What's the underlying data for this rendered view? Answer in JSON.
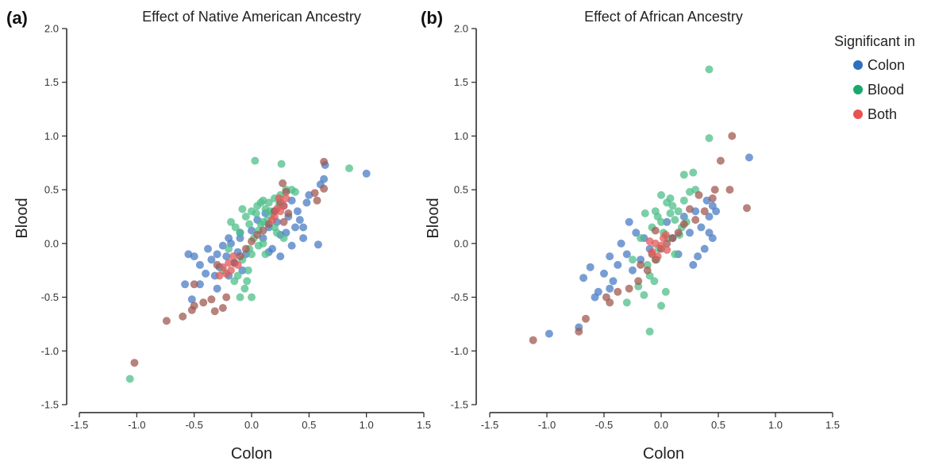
{
  "colors": {
    "colon": "#4a7cc4",
    "blood": "#4fbf8a",
    "both": "#a05a52",
    "both_light": "#e05a5a"
  },
  "legend": {
    "title": "Significant in",
    "placement": "top-right",
    "entries": [
      {
        "label": "Colon",
        "color": "#2f6fc0"
      },
      {
        "label": "Blood",
        "color": "#1aa86e"
      },
      {
        "label": "Both",
        "color": "#e8524f"
      }
    ]
  },
  "chart_data": [
    {
      "type": "scatter",
      "panel_letter": "(a)",
      "title": "Effect of Native American Ancestry",
      "xlabel": "Colon",
      "ylabel": "Blood",
      "xlim": [
        -1.5,
        1.5
      ],
      "ylim": [
        -1.5,
        2.0
      ],
      "xticks": [
        "-1.5",
        "-1.0",
        "-0.5",
        "0.0",
        "0.5",
        "1.0",
        "1.5"
      ],
      "yticks": [
        "-1.5",
        "-1.0",
        "-0.5",
        "0.0",
        "0.5",
        "1.0",
        "1.5",
        "2.0"
      ],
      "grid": false,
      "series": [
        {
          "name": "Colon",
          "color": "#4a7cc4",
          "points": [
            [
              -0.55,
              -0.1
            ],
            [
              -0.5,
              -0.12
            ],
            [
              -0.45,
              -0.2
            ],
            [
              -0.4,
              -0.28
            ],
            [
              -0.38,
              -0.05
            ],
            [
              -0.35,
              -0.15
            ],
            [
              -0.32,
              -0.3
            ],
            [
              -0.3,
              -0.1
            ],
            [
              -0.28,
              -0.22
            ],
            [
              -0.25,
              -0.02
            ],
            [
              -0.22,
              -0.12
            ],
            [
              -0.2,
              -0.3
            ],
            [
              -0.18,
              0.0
            ],
            [
              -0.15,
              -0.18
            ],
            [
              -0.12,
              -0.08
            ],
            [
              -0.1,
              0.05
            ],
            [
              -0.08,
              -0.25
            ],
            [
              -0.05,
              -0.1
            ],
            [
              0.0,
              0.12
            ],
            [
              0.05,
              0.22
            ],
            [
              0.1,
              0.05
            ],
            [
              0.12,
              0.28
            ],
            [
              0.15,
              0.15
            ],
            [
              0.18,
              -0.05
            ],
            [
              0.2,
              0.3
            ],
            [
              0.22,
              0.2
            ],
            [
              0.25,
              0.08
            ],
            [
              0.28,
              0.35
            ],
            [
              0.3,
              0.1
            ],
            [
              0.32,
              0.25
            ],
            [
              0.35,
              0.4
            ],
            [
              0.38,
              0.15
            ],
            [
              0.4,
              0.3
            ],
            [
              0.42,
              0.22
            ],
            [
              0.45,
              0.05
            ],
            [
              0.48,
              0.38
            ],
            [
              0.5,
              0.45
            ],
            [
              0.6,
              0.55
            ],
            [
              0.63,
              0.6
            ],
            [
              0.64,
              0.73
            ],
            [
              1.0,
              0.65
            ],
            [
              0.58,
              -0.01
            ],
            [
              -0.52,
              -0.52
            ],
            [
              -0.58,
              -0.38
            ],
            [
              -0.45,
              -0.38
            ],
            [
              -0.3,
              -0.42
            ],
            [
              0.25,
              -0.12
            ],
            [
              0.15,
              -0.08
            ],
            [
              -0.2,
              0.05
            ],
            [
              -0.1,
              0.1
            ],
            [
              0.35,
              -0.02
            ],
            [
              0.45,
              0.15
            ]
          ]
        },
        {
          "name": "Blood",
          "color": "#4fbf8a",
          "points": [
            [
              0.03,
              0.77
            ],
            [
              0.26,
              0.74
            ],
            [
              0.85,
              0.7
            ],
            [
              -1.06,
              -1.26
            ],
            [
              0.0,
              0.3
            ],
            [
              0.05,
              0.35
            ],
            [
              0.1,
              0.4
            ],
            [
              -0.05,
              0.25
            ],
            [
              0.08,
              0.18
            ],
            [
              -0.1,
              0.1
            ],
            [
              0.02,
              0.05
            ],
            [
              -0.02,
              -0.05
            ],
            [
              0.12,
              0.32
            ],
            [
              0.15,
              0.38
            ],
            [
              0.2,
              0.42
            ],
            [
              -0.08,
              -0.15
            ],
            [
              -0.03,
              -0.25
            ],
            [
              0.06,
              0.12
            ],
            [
              0.1,
              0.2
            ],
            [
              -0.12,
              -0.3
            ],
            [
              -0.06,
              -0.42
            ],
            [
              -0.15,
              -0.35
            ],
            [
              0.0,
              -0.5
            ],
            [
              -0.1,
              -0.5
            ],
            [
              0.18,
              0.28
            ],
            [
              0.22,
              0.1
            ],
            [
              0.25,
              0.45
            ],
            [
              0.3,
              0.5
            ],
            [
              0.35,
              0.5
            ],
            [
              0.38,
              0.48
            ],
            [
              -0.18,
              0.2
            ],
            [
              -0.14,
              0.15
            ],
            [
              0.04,
              0.28
            ],
            [
              0.14,
              0.22
            ],
            [
              0.0,
              -0.1
            ],
            [
              -0.04,
              -0.35
            ],
            [
              0.06,
              -0.02
            ],
            [
              0.1,
              0.0
            ],
            [
              -0.2,
              -0.05
            ],
            [
              -0.25,
              -0.25
            ],
            [
              0.28,
              0.05
            ],
            [
              0.16,
              0.3
            ],
            [
              -0.02,
              0.18
            ],
            [
              0.08,
              0.38
            ],
            [
              0.12,
              -0.1
            ],
            [
              -0.08,
              0.32
            ],
            [
              0.2,
              0.15
            ],
            [
              0.24,
              0.36
            ]
          ]
        },
        {
          "name": "Both",
          "color": "#a05a52",
          "points": [
            [
              -1.02,
              -1.11
            ],
            [
              -0.74,
              -0.72
            ],
            [
              -0.6,
              -0.68
            ],
            [
              -0.52,
              -0.62
            ],
            [
              -0.5,
              -0.58
            ],
            [
              -0.42,
              -0.55
            ],
            [
              -0.35,
              -0.52
            ],
            [
              -0.32,
              -0.63
            ],
            [
              -0.25,
              -0.6
            ],
            [
              -0.22,
              -0.5
            ],
            [
              -0.5,
              -0.38
            ],
            [
              0.63,
              0.76
            ],
            [
              0.63,
              0.51
            ],
            [
              0.55,
              0.47
            ],
            [
              0.57,
              0.4
            ],
            [
              0.27,
              0.56
            ],
            [
              0.3,
              0.48
            ],
            [
              0.25,
              0.38
            ],
            [
              0.2,
              0.3
            ],
            [
              0.15,
              0.18
            ],
            [
              0.1,
              0.12
            ],
            [
              0.05,
              0.08
            ],
            [
              0.0,
              0.02
            ],
            [
              -0.05,
              -0.05
            ],
            [
              -0.1,
              -0.12
            ],
            [
              -0.15,
              -0.18
            ],
            [
              0.28,
              0.2
            ],
            [
              0.32,
              0.28
            ],
            [
              -0.3,
              -0.2
            ]
          ]
        },
        {
          "name": "Both",
          "color": "#e05a5a",
          "points": [
            [
              -0.25,
              -0.22
            ],
            [
              -0.22,
              -0.28
            ],
            [
              -0.2,
              -0.18
            ],
            [
              -0.18,
              -0.25
            ],
            [
              -0.16,
              -0.12
            ],
            [
              -0.28,
              -0.3
            ],
            [
              0.22,
              0.32
            ],
            [
              0.25,
              0.3
            ],
            [
              0.28,
              0.35
            ],
            [
              0.3,
              0.42
            ],
            [
              0.24,
              0.42
            ],
            [
              0.2,
              0.25
            ],
            [
              0.18,
              0.22
            ],
            [
              -0.12,
              -0.2
            ]
          ]
        }
      ]
    },
    {
      "type": "scatter",
      "panel_letter": "(b)",
      "title": "Effect of African Ancestry",
      "xlabel": "Colon",
      "ylabel": "Blood",
      "xlim": [
        -1.5,
        1.5
      ],
      "ylim": [
        -1.5,
        2.0
      ],
      "xticks": [
        "-1.5",
        "-1.0",
        "-0.5",
        "0.0",
        "0.5",
        "1.0",
        "1.5"
      ],
      "yticks": [
        "-1.5",
        "-1.0",
        "-0.5",
        "0.0",
        "0.5",
        "1.0",
        "1.5",
        "2.0"
      ],
      "grid": false,
      "series": [
        {
          "name": "Colon",
          "color": "#4a7cc4",
          "points": [
            [
              0.77,
              0.8
            ],
            [
              -0.98,
              -0.84
            ],
            [
              -0.72,
              -0.78
            ],
            [
              -0.68,
              -0.32
            ],
            [
              -0.62,
              -0.22
            ],
            [
              -0.55,
              -0.45
            ],
            [
              -0.5,
              -0.28
            ],
            [
              -0.45,
              -0.12
            ],
            [
              -0.42,
              -0.35
            ],
            [
              -0.38,
              -0.2
            ],
            [
              -0.35,
              0.0
            ],
            [
              -0.3,
              -0.1
            ],
            [
              -0.25,
              -0.25
            ],
            [
              -0.22,
              0.1
            ],
            [
              -0.18,
              -0.15
            ],
            [
              -0.15,
              0.05
            ],
            [
              -0.1,
              -0.05
            ],
            [
              0.05,
              0.2
            ],
            [
              0.1,
              0.05
            ],
            [
              0.15,
              -0.1
            ],
            [
              0.2,
              0.25
            ],
            [
              0.25,
              0.1
            ],
            [
              0.3,
              0.3
            ],
            [
              0.35,
              0.15
            ],
            [
              0.4,
              0.4
            ],
            [
              0.42,
              0.25
            ],
            [
              0.45,
              0.35
            ],
            [
              0.48,
              0.3
            ],
            [
              0.38,
              -0.05
            ],
            [
              0.32,
              -0.12
            ],
            [
              0.42,
              0.1
            ],
            [
              -0.28,
              0.2
            ],
            [
              0.28,
              -0.2
            ],
            [
              0.45,
              0.05
            ],
            [
              -0.58,
              -0.5
            ],
            [
              -0.45,
              -0.42
            ]
          ]
        },
        {
          "name": "Blood",
          "color": "#4fbf8a",
          "points": [
            [
              0.42,
              1.62
            ],
            [
              0.42,
              0.98
            ],
            [
              0.2,
              0.64
            ],
            [
              0.28,
              0.66
            ],
            [
              -0.1,
              -0.82
            ],
            [
              0.0,
              0.45
            ],
            [
              0.05,
              0.38
            ],
            [
              -0.05,
              0.3
            ],
            [
              0.1,
              0.35
            ],
            [
              0.12,
              0.22
            ],
            [
              -0.08,
              0.15
            ],
            [
              0.02,
              0.1
            ],
            [
              -0.02,
              -0.05
            ],
            [
              0.08,
              0.28
            ],
            [
              -0.12,
              -0.2
            ],
            [
              -0.06,
              -0.35
            ],
            [
              0.04,
              -0.45
            ],
            [
              -0.15,
              -0.48
            ],
            [
              0.0,
              -0.58
            ],
            [
              0.15,
              0.3
            ],
            [
              -0.18,
              0.05
            ],
            [
              0.2,
              0.4
            ],
            [
              0.25,
              0.48
            ],
            [
              -0.25,
              -0.15
            ],
            [
              0.06,
              0.05
            ],
            [
              -0.03,
              0.25
            ],
            [
              0.12,
              -0.1
            ],
            [
              -0.1,
              -0.3
            ],
            [
              0.18,
              0.15
            ],
            [
              0.3,
              0.5
            ],
            [
              -0.2,
              -0.4
            ],
            [
              -0.3,
              -0.55
            ],
            [
              0.08,
              0.42
            ],
            [
              -0.04,
              -0.15
            ],
            [
              0.16,
              0.08
            ],
            [
              0.0,
              0.2
            ],
            [
              -0.14,
              0.28
            ],
            [
              0.22,
              0.2
            ]
          ]
        },
        {
          "name": "Both",
          "color": "#a05a52",
          "points": [
            [
              -1.12,
              -0.9
            ],
            [
              -0.72,
              -0.82
            ],
            [
              -0.66,
              -0.7
            ],
            [
              -0.48,
              -0.5
            ],
            [
              -0.45,
              -0.55
            ],
            [
              -0.38,
              -0.45
            ],
            [
              -0.28,
              -0.42
            ],
            [
              -0.2,
              -0.35
            ],
            [
              -0.12,
              -0.25
            ],
            [
              -0.05,
              -0.15
            ],
            [
              0.62,
              1.0
            ],
            [
              0.52,
              0.77
            ],
            [
              0.6,
              0.5
            ],
            [
              0.75,
              0.33
            ],
            [
              0.47,
              0.5
            ],
            [
              0.45,
              0.42
            ],
            [
              0.38,
              0.3
            ],
            [
              0.3,
              0.22
            ],
            [
              0.25,
              0.32
            ],
            [
              0.2,
              0.18
            ],
            [
              0.15,
              0.1
            ],
            [
              0.1,
              0.05
            ],
            [
              0.05,
              0.0
            ],
            [
              0.0,
              -0.05
            ],
            [
              -0.08,
              -0.1
            ],
            [
              -0.18,
              -0.2
            ],
            [
              0.33,
              0.45
            ],
            [
              -0.05,
              0.12
            ]
          ]
        },
        {
          "name": "Both",
          "color": "#e05a5a",
          "points": [
            [
              -0.05,
              0.0
            ],
            [
              0.0,
              -0.02
            ],
            [
              -0.08,
              -0.08
            ],
            [
              0.02,
              0.05
            ],
            [
              -0.03,
              -0.12
            ],
            [
              0.05,
              -0.06
            ],
            [
              -0.1,
              0.02
            ],
            [
              0.04,
              0.08
            ]
          ]
        }
      ]
    }
  ]
}
